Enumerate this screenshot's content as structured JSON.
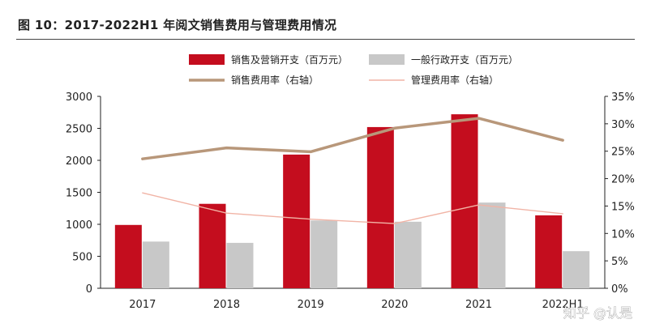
{
  "title": "图 10：2017-2022H1 年阅文销售费用与管理费用情况",
  "watermark": "知乎 @认是",
  "colors": {
    "sales_bar": "#c40d1e",
    "admin_bar": "#c8c8c8",
    "sales_rate_line": "#b8977a",
    "admin_rate_line": "#f1b4a6",
    "axis": "#222222"
  },
  "chart_data": {
    "type": "bar",
    "categories": [
      "2017",
      "2018",
      "2019",
      "2020",
      "2021",
      "2022H1"
    ],
    "series": [
      {
        "name": "销售及营销开支（百万元）",
        "kind": "bar",
        "axis": "left",
        "values": [
          990,
          1320,
          2090,
          2520,
          2720,
          1140
        ]
      },
      {
        "name": "一般行政开支（百万元）",
        "kind": "bar",
        "axis": "left",
        "values": [
          730,
          710,
          1060,
          1040,
          1340,
          580
        ]
      },
      {
        "name": "销售费用率（右轴）",
        "kind": "line",
        "axis": "right",
        "values": [
          23.6,
          25.6,
          24.9,
          29.2,
          31.0,
          27.0
        ]
      },
      {
        "name": "管理费用率（右轴）",
        "kind": "line",
        "axis": "right",
        "values": [
          17.4,
          13.7,
          12.6,
          11.8,
          15.2,
          13.6
        ]
      }
    ],
    "y_left": {
      "min": 0,
      "max": 3000,
      "ticks": [
        "0",
        "500",
        "1000",
        "1500",
        "2000",
        "2500",
        "3000"
      ]
    },
    "y_right": {
      "min": 0,
      "max": 35,
      "ticks": [
        "0%",
        "5%",
        "10%",
        "15%",
        "20%",
        "25%",
        "30%",
        "35%"
      ]
    },
    "legend_position": "top-center",
    "grid": false
  }
}
